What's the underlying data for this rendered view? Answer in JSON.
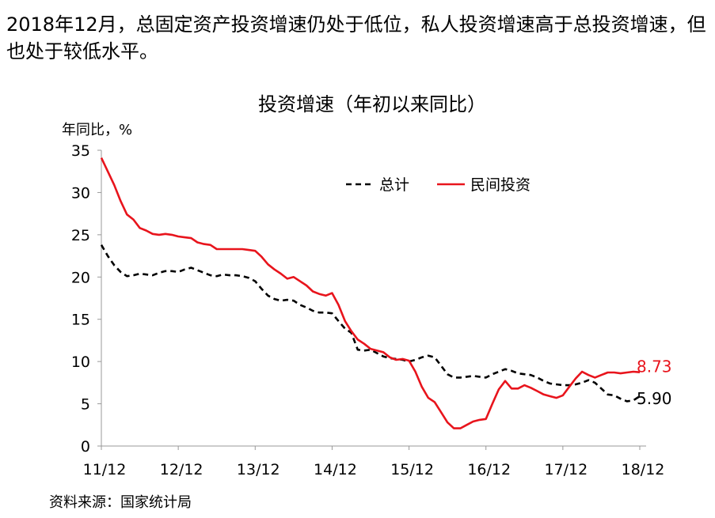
{
  "headline": "2018年12月，总固定资产投资增速仍处于低位，私人投资增速高于总投资增速，但也处于较低水平。",
  "source": "资料来源：国家统计局",
  "chart_data": {
    "type": "line",
    "title": "投资增速（年初以来同比）",
    "ylabel": "年同比，%",
    "xlabel": "",
    "ylim": [
      0,
      35
    ],
    "yticks": [
      0,
      5,
      10,
      15,
      20,
      25,
      30,
      35
    ],
    "grid": false,
    "legend_position": "top-right",
    "categories": [
      "11/12",
      "12/12",
      "13/12",
      "14/12",
      "15/12",
      "16/12",
      "17/12",
      "18/12"
    ],
    "series": [
      {
        "name": "总计",
        "style": "dashed",
        "color": "#000000",
        "end_label": "5.90",
        "x": [
          0,
          0.083,
          0.167,
          0.25,
          0.333,
          0.417,
          0.5,
          0.583,
          0.667,
          0.75,
          0.833,
          0.917,
          1,
          1.083,
          1.167,
          1.25,
          1.333,
          1.417,
          1.5,
          1.583,
          1.667,
          1.75,
          1.833,
          1.917,
          2,
          2.083,
          2.167,
          2.25,
          2.333,
          2.417,
          2.5,
          2.583,
          2.667,
          2.75,
          2.833,
          2.917,
          3,
          3.083,
          3.167,
          3.25,
          3.333,
          3.417,
          3.5,
          3.583,
          3.667,
          3.75,
          3.833,
          3.917,
          4,
          4.083,
          4.167,
          4.25,
          4.333,
          4.417,
          4.5,
          4.583,
          4.667,
          4.75,
          4.833,
          4.917,
          5,
          5.083,
          5.167,
          5.25,
          5.333,
          5.417,
          5.5,
          5.583,
          5.667,
          5.75,
          5.833,
          5.917,
          6,
          6.083,
          6.167,
          6.25,
          6.333,
          6.417,
          6.5,
          6.583,
          6.667,
          6.75,
          6.833,
          6.917,
          7
        ],
        "values": [
          23.8,
          22.5,
          21.4,
          20.6,
          20.1,
          20.2,
          20.4,
          20.3,
          20.2,
          20.5,
          20.7,
          20.7,
          20.6,
          20.9,
          21.1,
          20.8,
          20.5,
          20.2,
          20.1,
          20.3,
          20.2,
          20.2,
          20.1,
          19.9,
          19.5,
          18.6,
          17.8,
          17.4,
          17.2,
          17.3,
          17.2,
          16.7,
          16.4,
          16.0,
          15.8,
          15.8,
          15.7,
          14.8,
          13.9,
          13.4,
          11.4,
          11.3,
          11.4,
          11.0,
          10.6,
          10.4,
          10.3,
          10.2,
          10.0,
          10.2,
          10.5,
          10.7,
          10.5,
          9.5,
          8.5,
          8.1,
          8.1,
          8.2,
          8.3,
          8.2,
          8.1,
          8.5,
          8.8,
          9.1,
          8.9,
          8.6,
          8.5,
          8.4,
          8.1,
          7.7,
          7.4,
          7.3,
          7.2,
          7.2,
          7.3,
          7.5,
          7.8,
          7.5,
          6.8,
          6.1,
          6.0,
          5.6,
          5.3,
          5.4,
          5.9
        ]
      },
      {
        "name": "民间投资",
        "style": "solid",
        "color": "#e8141c",
        "end_label": "8.73",
        "x": [
          0,
          0.083,
          0.167,
          0.25,
          0.333,
          0.417,
          0.5,
          0.583,
          0.667,
          0.75,
          0.833,
          0.917,
          1,
          1.083,
          1.167,
          1.25,
          1.333,
          1.417,
          1.5,
          1.583,
          1.667,
          1.75,
          1.833,
          1.917,
          2,
          2.083,
          2.167,
          2.25,
          2.333,
          2.417,
          2.5,
          2.583,
          2.667,
          2.75,
          2.833,
          2.917,
          3,
          3.083,
          3.167,
          3.25,
          3.333,
          3.417,
          3.5,
          3.583,
          3.667,
          3.75,
          3.833,
          3.917,
          4,
          4.083,
          4.167,
          4.25,
          4.333,
          4.417,
          4.5,
          4.583,
          4.667,
          4.75,
          4.833,
          4.917,
          5,
          5.083,
          5.167,
          5.25,
          5.333,
          5.417,
          5.5,
          5.583,
          5.667,
          5.75,
          5.833,
          5.917,
          6,
          6.083,
          6.167,
          6.25,
          6.333,
          6.417,
          6.5,
          6.583,
          6.667,
          6.75,
          6.833,
          6.917,
          7
        ],
        "values": [
          34.1,
          32.5,
          30.9,
          29.0,
          27.4,
          26.8,
          25.8,
          25.5,
          25.1,
          25.0,
          25.1,
          25.0,
          24.8,
          24.7,
          24.6,
          24.1,
          23.9,
          23.8,
          23.3,
          23.3,
          23.3,
          23.3,
          23.3,
          23.2,
          23.1,
          22.4,
          21.5,
          20.9,
          20.4,
          19.8,
          20.0,
          19.5,
          19.0,
          18.3,
          18.0,
          17.8,
          18.1,
          16.7,
          14.8,
          13.6,
          12.6,
          12.1,
          11.5,
          11.3,
          11.1,
          10.5,
          10.2,
          10.3,
          10.1,
          8.8,
          7.0,
          5.7,
          5.2,
          4.0,
          2.8,
          2.1,
          2.1,
          2.5,
          2.9,
          3.1,
          3.2,
          5.0,
          6.7,
          7.7,
          6.8,
          6.8,
          7.2,
          6.9,
          6.5,
          6.1,
          5.9,
          5.7,
          6.0,
          7.0,
          8.0,
          8.8,
          8.4,
          8.1,
          8.4,
          8.7,
          8.7,
          8.6,
          8.7,
          8.8,
          8.73
        ]
      }
    ]
  }
}
